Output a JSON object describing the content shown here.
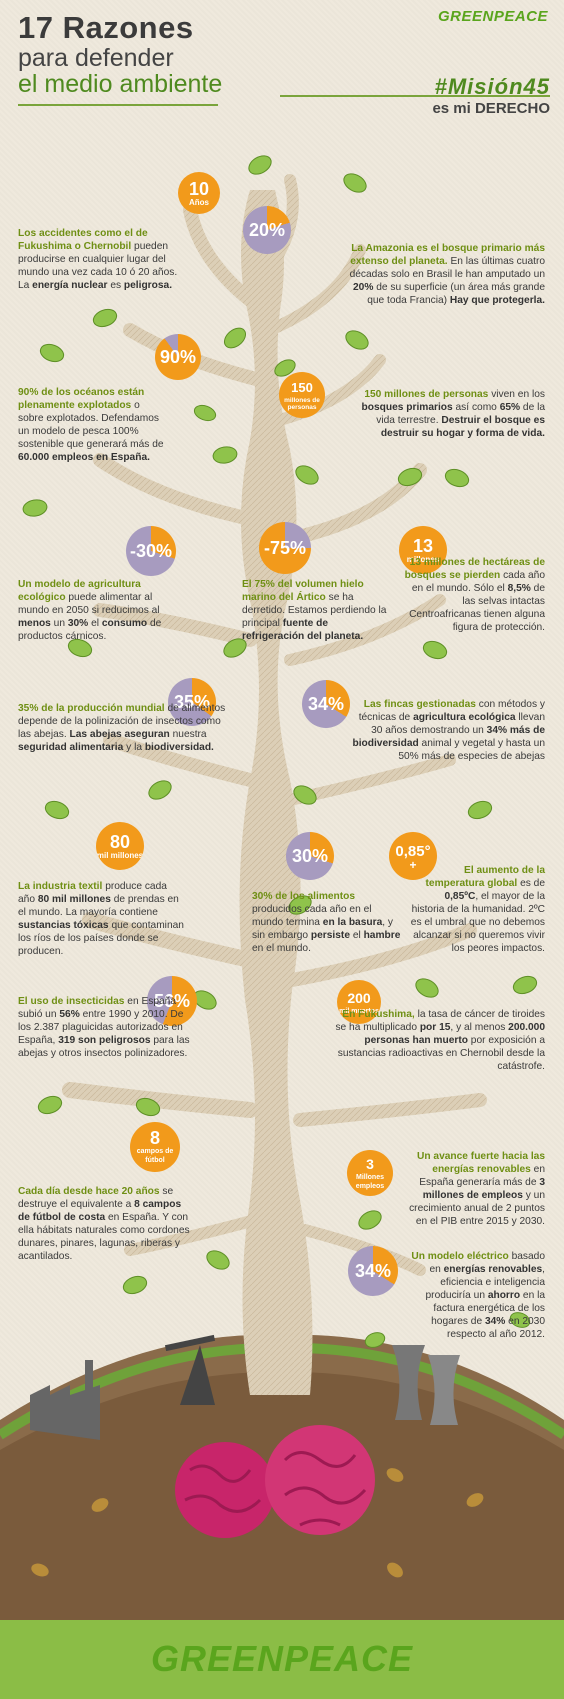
{
  "header": {
    "title_line1": "17 Razones",
    "title_line2": "para defender",
    "title_line3": "el medio ambiente",
    "brand": "GREENPEACE",
    "hashtag": "#Misión45",
    "hashtag_sub": "es mi DERECHO"
  },
  "footer": {
    "brand": "GREENPEACE"
  },
  "colors": {
    "green": "#5aa51d",
    "orange": "#f29a1b",
    "lavender": "#a79bbf",
    "trunk": "#dccfb7",
    "brain": "#c8256a"
  },
  "badges": {
    "b10": {
      "big": "10",
      "small": "Años",
      "fill": 1.0,
      "color": "orange"
    },
    "b20": {
      "big": "20%",
      "fill": 0.2,
      "color": "lav-orange"
    },
    "b90": {
      "big": "90%",
      "fill": 0.9,
      "color": "orange-lav"
    },
    "b150": {
      "big": "150",
      "small": "millones de personas",
      "fill": 1.0,
      "color": "orange"
    },
    "b30a": {
      "big": "-30%",
      "fill": 0.3,
      "color": "lav-orange"
    },
    "b75": {
      "big": "-75%",
      "fill": 0.75,
      "color": "orange-lav"
    },
    "b13": {
      "big": "13",
      "small": "millones",
      "fill": 1.0,
      "color": "orange"
    },
    "b35": {
      "big": "35%",
      "fill": 0.35,
      "color": "lav-orange"
    },
    "b34a": {
      "big": "34%",
      "fill": 0.34,
      "color": "lav-orange"
    },
    "b80": {
      "big": "80",
      "small": "mil millones",
      "fill": 1.0,
      "color": "orange"
    },
    "b30b": {
      "big": "30%",
      "fill": 0.3,
      "color": "lav-orange"
    },
    "b085": {
      "big": "0,85°",
      "small": "+",
      "fill": 1.0,
      "color": "orange"
    },
    "b56": {
      "big": "56%",
      "fill": 0.56,
      "color": "orange-lav"
    },
    "b200": {
      "big": "200",
      "small": "mil muertos",
      "fill": 1.0,
      "color": "orange"
    },
    "b8": {
      "big": "8",
      "small": "campos de fútbol",
      "fill": 1.0,
      "color": "orange"
    },
    "b3": {
      "big": "3",
      "small": "Millones empleos",
      "fill": 1.0,
      "color": "orange"
    },
    "b34b": {
      "big": "34%",
      "fill": 0.34,
      "color": "lav-orange"
    }
  },
  "facts": {
    "f1": {
      "h": "Los accidentes como el de Fukushima o Chernobil",
      "t": " pueden producirse en cualquier lugar del mundo una vez cada 10 ó 20 años. La ",
      "b": "energía nuclear",
      "t2": " es ",
      "b2": "peligrosa."
    },
    "f2": {
      "h": "La Amazonia es el bosque primario más extenso del planeta.",
      "t": " En las últimas cuatro décadas solo en Brasil le han amputado un ",
      "b": "20%",
      "t2": " de su superficie (un área más grande que toda Francia) ",
      "b2": "Hay que protegerla."
    },
    "f3": {
      "h": "90% de los océanos están plenamente explotados",
      "t": " o sobre explotados. Defendamos un modelo de pesca 100% sostenible que generará más de ",
      "b": "60.000 empleos en España."
    },
    "f4": {
      "h": "150 millones de personas",
      "t": " viven en los ",
      "b": "bosques primarios",
      "t2": " así como ",
      "b2": "65%",
      "t3": " de la vida terrestre. ",
      "b3": "Destruir el bosque es destruir su hogar y forma de vida."
    },
    "f5": {
      "h": "Un modelo de agricultura ecológico",
      "t": " puede alimentar al mundo en 2050 si reducimos al ",
      "b": "menos",
      "t2": " un ",
      "b2": "30%",
      "t3": " el ",
      "b3": "consumo",
      "t4": " de productos cárnicos."
    },
    "f6": {
      "h": "El 75% del volumen hielo marino del Ártico",
      "t": " se ha derretido. Estamos perdiendo la principal ",
      "b": "fuente de refrigeración del planeta."
    },
    "f7": {
      "h": "13 millones de hectáreas de bosques se pierden",
      "t": " cada año en el mundo. Sólo el ",
      "b": "8,5%",
      "t2": " de las selvas intactas Centroafricanas tienen alguna figura de protección."
    },
    "f8": {
      "h": "35% de la producción mundial",
      "t": " de alimentos depende de la polinización de insectos como las abejas. ",
      "b": "Las abejas aseguran",
      "t2": " nuestra ",
      "b2": "seguridad alimentaria",
      "t3": " y la ",
      "b3": "biodiversidad."
    },
    "f9": {
      "h": "Las fincas gestionadas",
      "t": " con métodos y técnicas de ",
      "b": "agricultura ecológica",
      "t2": " llevan 30 años demostrando un ",
      "b2": "34% más de biodiversidad",
      "t3": " animal y vegetal y hasta un 50% más de especies de abejas"
    },
    "f10": {
      "h": "La industria textil",
      "t": " produce cada año ",
      "b": "80 mil millones",
      "t2": " de prendas en el mundo. La mayoría contiene ",
      "b2": "sustancias tóxicas",
      "t3": " que contaminan los ríos de los países donde se producen."
    },
    "f11": {
      "h": "30% de los alimentos",
      "t": " producidos cada año en el mundo termina ",
      "b": "en la basura",
      "t2": ", y sin embargo ",
      "b2": "persiste",
      "t3": " el ",
      "b3": "hambre",
      "t4": " en el mundo."
    },
    "f12": {
      "h": "El aumento de la temperatura global",
      "t": " es de ",
      "b": "0,85ºC",
      "t2": ", el mayor de la historia de la humanidad. 2ºC es el umbral que no debemos alcanzar si no queremos vivir los peores impactos."
    },
    "f13": {
      "h": "El uso de insecticidas",
      "t": " en España subió un ",
      "b": "56%",
      "t2": " entre 1990 y 2010. De los 2.387 plaguicidas autorizados en España, ",
      "b2": "319 son peligrosos",
      "t3": " para las abejas y otros insectos polinizadores."
    },
    "f14": {
      "h": "En Fukushima,",
      "t": " la tasa de cáncer de tiroides se ha multiplicado ",
      "b": "por 15",
      "t2": ", y al menos ",
      "b2": "200.000 personas han muerto",
      "t3": " por exposición a sustancias radioactivas en Chernobil desde la catástrofe."
    },
    "f15": {
      "h": "Cada día desde hace 20 años",
      "t": " se destruye el equivalente a ",
      "b": "8 campos de fútbol de costa",
      "t2": " en España. Y con ella hábitats naturales como cordones dunares, pinares, lagunas, riberas y acantilados."
    },
    "f16": {
      "h": "Un avance fuerte hacia las energías renovables",
      "t": " en España generaría más de ",
      "b": "3 millones de empleos",
      "t2": " y un crecimiento anual de 2 puntos en el PIB entre 2015 y 2030."
    },
    "f17": {
      "h": "Un modelo eléctrico",
      "t": " basado en ",
      "b": "energías renovables",
      "t2": ", eficiencia e inteligencia produciría un ",
      "b2": "ahorro",
      "t3": " en la factura energética de los hogares de ",
      "b3": "34%",
      "t4": " en 2030 respecto al año 2012."
    }
  }
}
